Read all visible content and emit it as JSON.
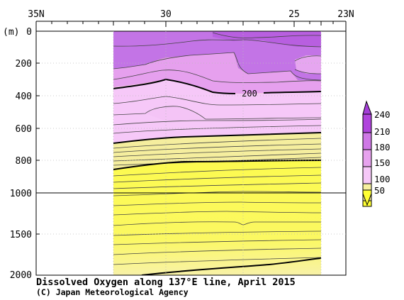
{
  "chart_data": {
    "type": "heatmap",
    "title": "Dissolved Oxygen along 137°E line, April 2015",
    "credit": "(C) Japan Meteorological Agency",
    "x_ticks": [
      "35N",
      "30",
      "25",
      "23N"
    ],
    "y_unit": "(m)",
    "y_ticks": [
      "0",
      "200",
      "400",
      "600",
      "800",
      "1000",
      "1500",
      "2000"
    ],
    "contour_label": "200",
    "x_range_latitude": [
      35,
      23
    ],
    "data_extent_latitude": [
      31.6,
      23.6
    ],
    "y_range_m": [
      0,
      2000
    ],
    "y_axis_note": "scale changes at 1000 m",
    "levels": [
      50,
      100,
      150,
      180,
      210,
      240
    ],
    "level_colors": [
      "#ffff33",
      "#f7f0a0",
      "#f6c8f8",
      "#e7a2ee",
      "#cf78e6",
      "#b044dd"
    ],
    "contours_m": [
      {
        "value": 200,
        "lat": [
          31.6,
          30,
          28.2,
          26,
          23.6
        ],
        "depth": [
          360,
          300,
          380,
          380,
          375
        ],
        "bold": true
      },
      {
        "value": 150,
        "lat": [
          31.6,
          30,
          28,
          26,
          23.6
        ],
        "depth": [
          690,
          670,
          660,
          645,
          630
        ],
        "bold": true
      },
      {
        "value": 100,
        "lat": [
          31.6,
          30,
          28,
          26,
          23.6
        ],
        "depth": [
          840,
          800,
          795,
          780,
          760
        ],
        "bold": true
      }
    ],
    "colorbar_labels": [
      "240",
      "210",
      "180",
      "150",
      "100",
      "50"
    ]
  }
}
